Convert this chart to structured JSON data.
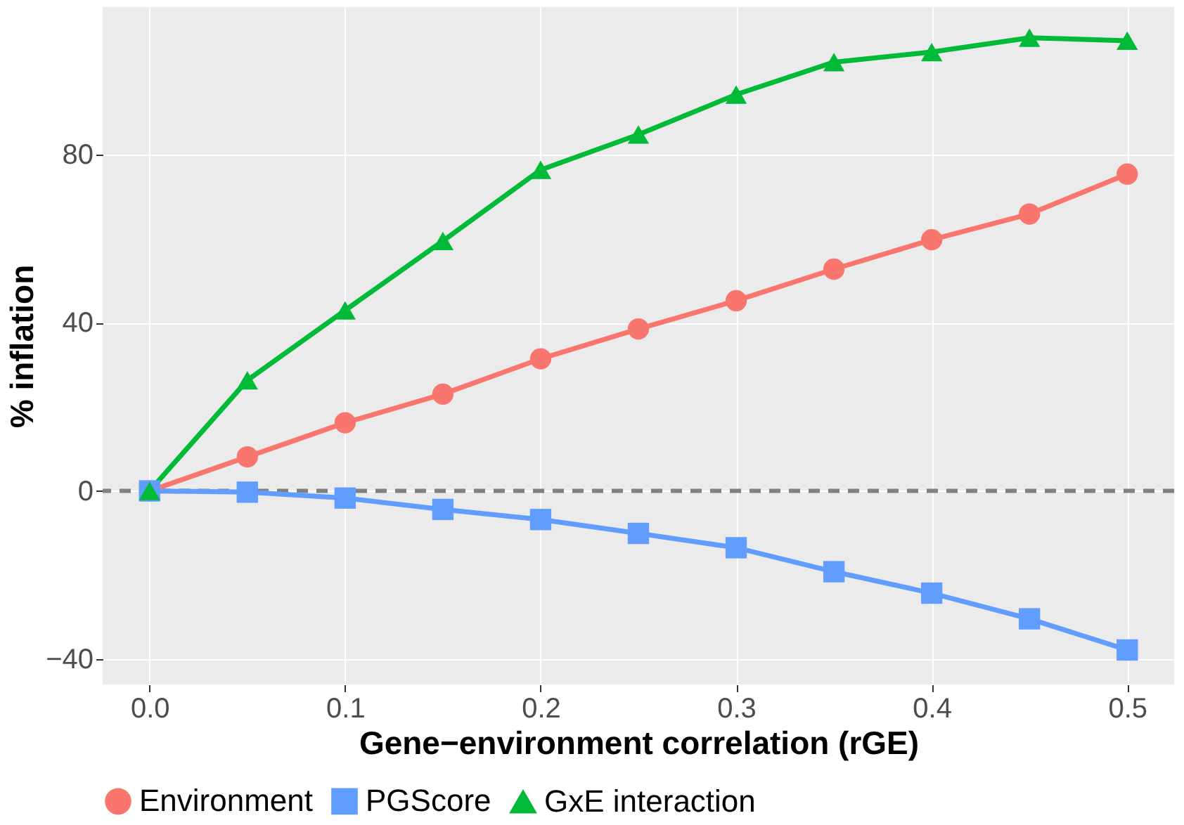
{
  "chart_data": {
    "type": "line",
    "xlabel": "Gene−environment correlation (rGE)",
    "ylabel": "% inflation",
    "x": [
      0,
      0.05,
      0.1,
      0.15,
      0.2,
      0.25,
      0.3,
      0.35,
      0.4,
      0.45,
      0.5
    ],
    "series": [
      {
        "name": "Environment",
        "color": "#f8766d",
        "marker": "circle",
        "values": [
          0,
          8.1,
          16.2,
          23.0,
          31.4,
          38.5,
          45.2,
          52.7,
          59.7,
          65.8,
          75.3
        ]
      },
      {
        "name": "PGScore",
        "color": "#619cff",
        "marker": "square",
        "values": [
          0,
          -0.3,
          -1.7,
          -4.4,
          -6.8,
          -10.1,
          -13.5,
          -19.2,
          -24.3,
          -30.4,
          -37.8
        ]
      },
      {
        "name": "GxE interaction",
        "color": "#00ba38",
        "marker": "triangle",
        "values": [
          0,
          26.3,
          42.9,
          59.4,
          76.3,
          84.7,
          94.2,
          101.9,
          104.3,
          107.7,
          107.0
        ]
      }
    ],
    "xlim": [
      -0.024,
      0.524
    ],
    "xticks": [
      {
        "value": 0,
        "label": "0.0"
      },
      0.1,
      0.2,
      0.3,
      0.4,
      0.5
    ],
    "ylim": [
      -46,
      115
    ],
    "yticks": [
      -40,
      0,
      40,
      80
    ],
    "ref_lines": [
      {
        "axis": "y",
        "value": 0,
        "color": "#808080",
        "line_style": "dashed"
      }
    ],
    "grid": true,
    "legend": "bottom",
    "line_style": "solid"
  }
}
